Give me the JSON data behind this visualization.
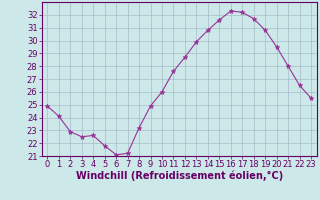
{
  "x": [
    0,
    1,
    2,
    3,
    4,
    5,
    6,
    7,
    8,
    9,
    10,
    11,
    12,
    13,
    14,
    15,
    16,
    17,
    18,
    19,
    20,
    21,
    22,
    23
  ],
  "y": [
    24.9,
    24.1,
    22.9,
    22.5,
    22.6,
    21.8,
    21.1,
    21.2,
    23.2,
    24.9,
    26.0,
    27.6,
    28.7,
    29.9,
    30.8,
    31.6,
    32.3,
    32.2,
    31.7,
    30.8,
    29.5,
    28.0,
    26.5,
    25.5
  ],
  "line_color": "#993399",
  "marker": "*",
  "marker_size": 3.5,
  "bg_color": "#cce8e8",
  "grid_color": "#aabbcc",
  "xlabel": "Windchill (Refroidissement éolien,°C)",
  "ylim": [
    21,
    33
  ],
  "xlim": [
    -0.5,
    23.5
  ],
  "yticks": [
    21,
    22,
    23,
    24,
    25,
    26,
    27,
    28,
    29,
    30,
    31,
    32
  ],
  "xticks": [
    0,
    1,
    2,
    3,
    4,
    5,
    6,
    7,
    8,
    9,
    10,
    11,
    12,
    13,
    14,
    15,
    16,
    17,
    18,
    19,
    20,
    21,
    22,
    23
  ],
  "xlabel_fontsize": 7,
  "tick_fontsize": 6,
  "label_color": "#660066",
  "spine_color": "#660066"
}
